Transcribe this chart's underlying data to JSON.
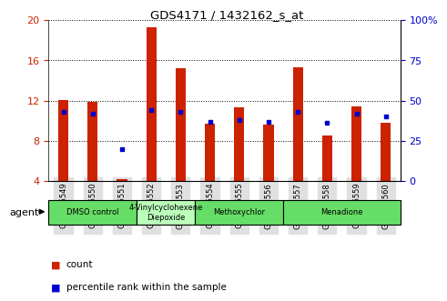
{
  "title": "GDS4171 / 1432162_s_at",
  "samples": [
    "GSM585549",
    "GSM585550",
    "GSM585551",
    "GSM585552",
    "GSM585553",
    "GSM585554",
    "GSM585555",
    "GSM585556",
    "GSM585557",
    "GSM585558",
    "GSM585559",
    "GSM585560"
  ],
  "counts": [
    12.1,
    11.9,
    4.2,
    19.3,
    15.2,
    9.7,
    11.3,
    9.6,
    15.3,
    8.5,
    11.4,
    9.8
  ],
  "percentile_values": [
    43,
    42,
    20,
    44,
    43,
    37,
    38,
    37,
    43,
    36,
    42,
    40
  ],
  "bar_color": "#cc2200",
  "dot_color": "#0000cc",
  "ylim_left": [
    4,
    20
  ],
  "ylim_right": [
    0,
    100
  ],
  "yticks_left": [
    4,
    8,
    12,
    16,
    20
  ],
  "yticks_right": [
    0,
    25,
    50,
    75,
    100
  ],
  "groups": [
    {
      "label": "DMSO control",
      "start": 0,
      "end": 3,
      "color": "#66dd66"
    },
    {
      "label": "4-Vinylcyclohexene\nDiepoxide",
      "start": 3,
      "end": 5,
      "color": "#bbffbb"
    },
    {
      "label": "Methoxychlor",
      "start": 5,
      "end": 8,
      "color": "#66dd66"
    },
    {
      "label": "Menadione",
      "start": 8,
      "end": 12,
      "color": "#66dd66"
    }
  ],
  "agent_label": "agent",
  "legend_count_label": "count",
  "legend_pct_label": "percentile rank within the sample",
  "grid_color": "#000000",
  "bg_color": "#ffffff",
  "tick_bg": "#e0e0e0"
}
